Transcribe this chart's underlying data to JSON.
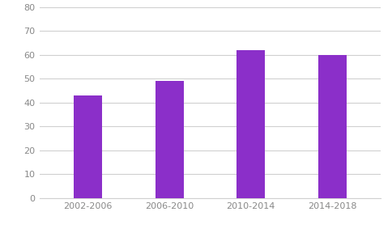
{
  "categories": [
    "2002-2006",
    "2006-2010",
    "2010-2014",
    "2014-2018"
  ],
  "values": [
    43,
    49,
    62,
    60
  ],
  "bar_color": "#8B2FC9",
  "ylim": [
    0,
    80
  ],
  "yticks": [
    0,
    10,
    20,
    30,
    40,
    50,
    60,
    70,
    80
  ],
  "background_color": "#ffffff",
  "grid_color": "#d0d0d0",
  "bar_width": 0.35,
  "tick_fontsize": 8,
  "tick_color": "#888888"
}
